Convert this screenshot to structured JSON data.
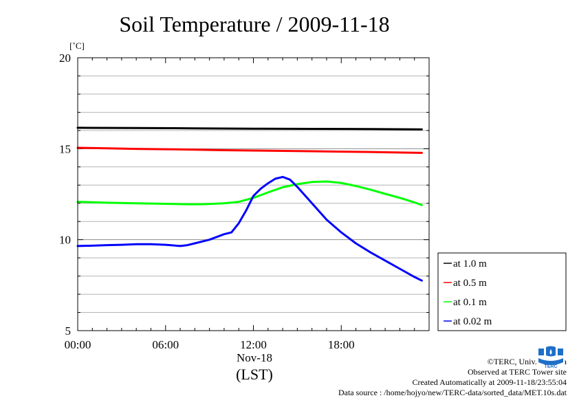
{
  "chart_data": {
    "type": "line",
    "title": "Soil Temperature / 2009-11-18",
    "ylabel": "[˚C]",
    "xlabel": "(LST)",
    "date_label": "Nov-18",
    "x_ticks": [
      "00:00",
      "06:00",
      "12:00",
      "18:00"
    ],
    "y_ticks": [
      "20",
      "15",
      "10",
      "5"
    ],
    "ylim": [
      5,
      20
    ],
    "xlim_hours": [
      0,
      24
    ],
    "grid": true,
    "grid_minor_step": 1,
    "legend_position": "right",
    "series": [
      {
        "name": "at 1.0 m",
        "color": "#000000",
        "x": [
          0,
          4,
          8,
          12,
          16,
          20,
          23.5
        ],
        "y": [
          16.15,
          16.14,
          16.12,
          16.1,
          16.09,
          16.08,
          16.06
        ]
      },
      {
        "name": "at 0.5 m",
        "color": "#ff0000",
        "x": [
          0,
          2,
          4,
          6,
          8,
          10,
          12,
          14,
          16,
          18,
          20,
          22,
          23.5
        ],
        "y": [
          15.05,
          15.02,
          14.99,
          14.97,
          14.95,
          14.92,
          14.9,
          14.88,
          14.86,
          14.84,
          14.82,
          14.79,
          14.77
        ]
      },
      {
        "name": "at 0.1 m",
        "color": "#00ff00",
        "x": [
          0,
          2,
          4,
          6,
          7.5,
          8.5,
          10,
          11,
          12,
          13,
          14,
          15,
          16,
          17,
          18,
          19,
          20,
          21,
          22,
          23,
          23.5
        ],
        "y": [
          12.08,
          12.03,
          12.0,
          11.97,
          11.95,
          11.95,
          12.0,
          12.08,
          12.3,
          12.6,
          12.88,
          13.05,
          13.17,
          13.2,
          13.12,
          12.95,
          12.75,
          12.52,
          12.3,
          12.05,
          11.9
        ]
      },
      {
        "name": "at 0.02 m",
        "color": "#0000ff",
        "x": [
          0,
          1,
          2,
          3,
          4,
          5,
          6,
          7,
          7.5,
          8,
          9,
          10,
          10.5,
          11,
          11.5,
          12,
          12.5,
          13,
          13.5,
          14,
          14.5,
          15,
          16,
          17,
          18,
          19,
          20,
          21,
          22,
          23,
          23.5
        ],
        "y": [
          9.65,
          9.67,
          9.7,
          9.72,
          9.75,
          9.75,
          9.72,
          9.65,
          9.7,
          9.8,
          10.0,
          10.3,
          10.4,
          10.9,
          11.6,
          12.4,
          12.8,
          13.1,
          13.35,
          13.45,
          13.3,
          12.9,
          12.0,
          11.1,
          10.4,
          9.8,
          9.3,
          8.85,
          8.4,
          7.95,
          7.75
        ]
      }
    ]
  },
  "credits": {
    "copyright": "©TERC, Univ. Tsukuba",
    "site": "Observed at TERC Tower site",
    "created": "Created Automatically at 2009-11-18/23:55:04",
    "source": "Data source : /home/hojyo/new/TERC-data/sorted_data/MET.10s.dat",
    "logo_text": "TERC"
  }
}
